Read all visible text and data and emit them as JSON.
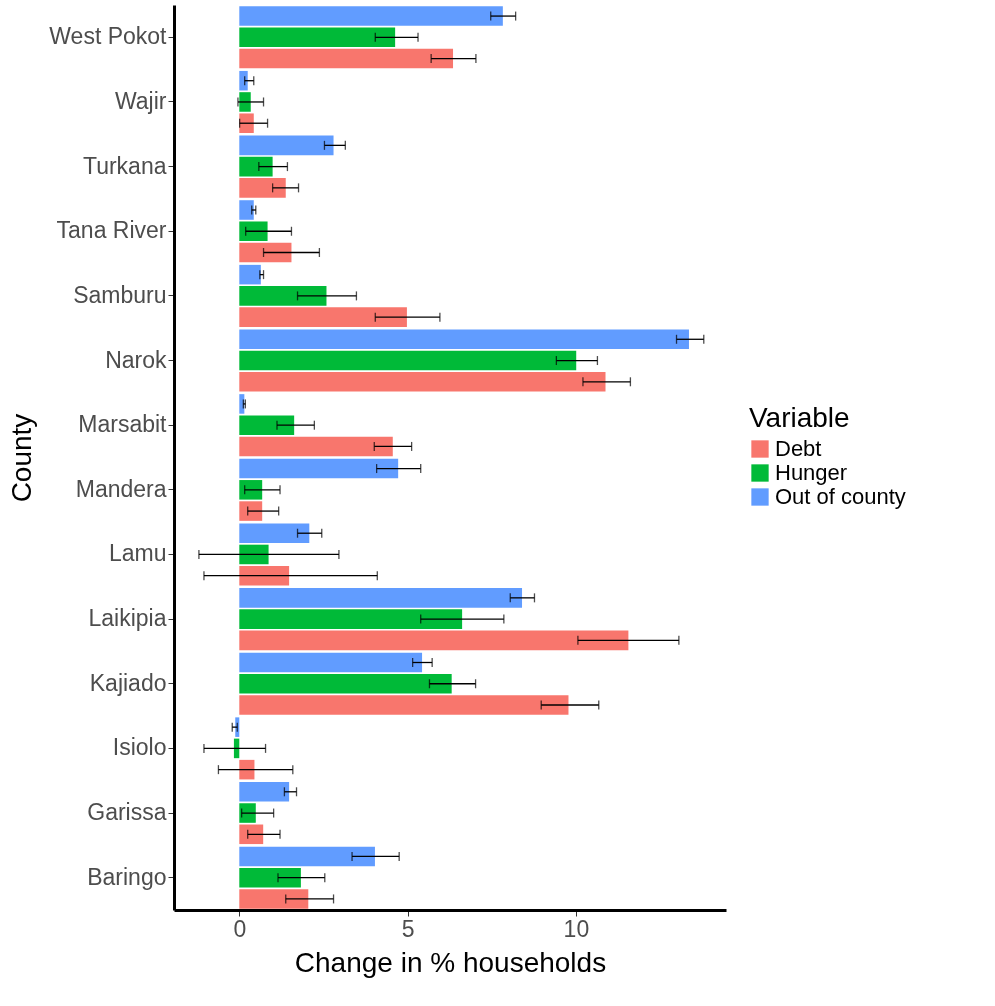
{
  "chart_data": {
    "type": "bar",
    "orientation": "horizontal",
    "xlabel": "Change in % households",
    "ylabel": "County",
    "legend_title": "Variable",
    "legend": "right",
    "grid": false,
    "categories": [
      "West Pokot",
      "Wajir",
      "Turkana",
      "Tana River",
      "Samburu",
      "Narok",
      "Marsabit",
      "Mandera",
      "Lamu",
      "Laikipia",
      "Kajiado",
      "Isiolo",
      "Garissa",
      "Baringo"
    ],
    "xlim": [
      -1.94,
      14.46
    ],
    "xticks": [
      0,
      5,
      10
    ],
    "series": [
      {
        "name": "Debt",
        "color": "#f8766d",
        "values": [
          6.35,
          0.43,
          1.38,
          1.55,
          4.98,
          10.88,
          4.56,
          0.68,
          1.48,
          11.56,
          9.78,
          0.45,
          0.71,
          2.05
        ],
        "errors": [
          [
            5.7,
            7.03
          ],
          [
            0.01,
            0.84
          ],
          [
            0.99,
            1.76
          ],
          [
            0.72,
            2.38
          ],
          [
            4.04,
            5.96
          ],
          [
            10.21,
            11.62
          ],
          [
            4.01,
            5.12
          ],
          [
            0.25,
            1.17
          ],
          [
            -1.05,
            4.1
          ],
          [
            10.06,
            13.06
          ],
          [
            8.97,
            10.68
          ],
          [
            -0.62,
            1.59
          ],
          [
            0.25,
            1.21
          ],
          [
            1.38,
            2.8
          ]
        ]
      },
      {
        "name": "Hunger",
        "color": "#00ba38",
        "values": [
          4.63,
          0.34,
          0.99,
          0.84,
          2.59,
          10.01,
          1.63,
          0.68,
          0.87,
          6.62,
          6.31,
          -0.16,
          0.49,
          1.83
        ],
        "errors": [
          [
            4.04,
            5.31
          ],
          [
            -0.04,
            0.72
          ],
          [
            0.58,
            1.43
          ],
          [
            0.19,
            1.55
          ],
          [
            1.73,
            3.48
          ],
          [
            9.42,
            10.64
          ],
          [
            1.12,
            2.23
          ],
          [
            0.16,
            1.21
          ],
          [
            -1.2,
            2.96
          ],
          [
            5.39,
            7.86
          ],
          [
            5.65,
            7.02
          ],
          [
            -1.05,
            0.78
          ],
          [
            0.07,
            1.02
          ],
          [
            1.15,
            2.54
          ]
        ]
      },
      {
        "name": "Out of county",
        "color": "#619cff",
        "values": [
          7.83,
          0.25,
          2.8,
          0.43,
          0.64,
          13.36,
          0.15,
          4.72,
          2.08,
          8.4,
          5.43,
          -0.12,
          1.48,
          4.03
        ],
        "errors": [
          [
            7.47,
            8.21
          ],
          [
            0.16,
            0.43
          ],
          [
            2.53,
            3.15
          ],
          [
            0.37,
            0.49
          ],
          [
            0.61,
            0.72
          ],
          [
            12.99,
            13.8
          ],
          [
            0.12,
            0.18
          ],
          [
            4.08,
            5.39
          ],
          [
            1.73,
            2.45
          ],
          [
            8.05,
            8.77
          ],
          [
            5.15,
            5.73
          ],
          [
            -0.21,
            -0.06
          ],
          [
            1.34,
            1.7
          ],
          [
            3.35,
            4.75
          ]
        ]
      }
    ]
  }
}
